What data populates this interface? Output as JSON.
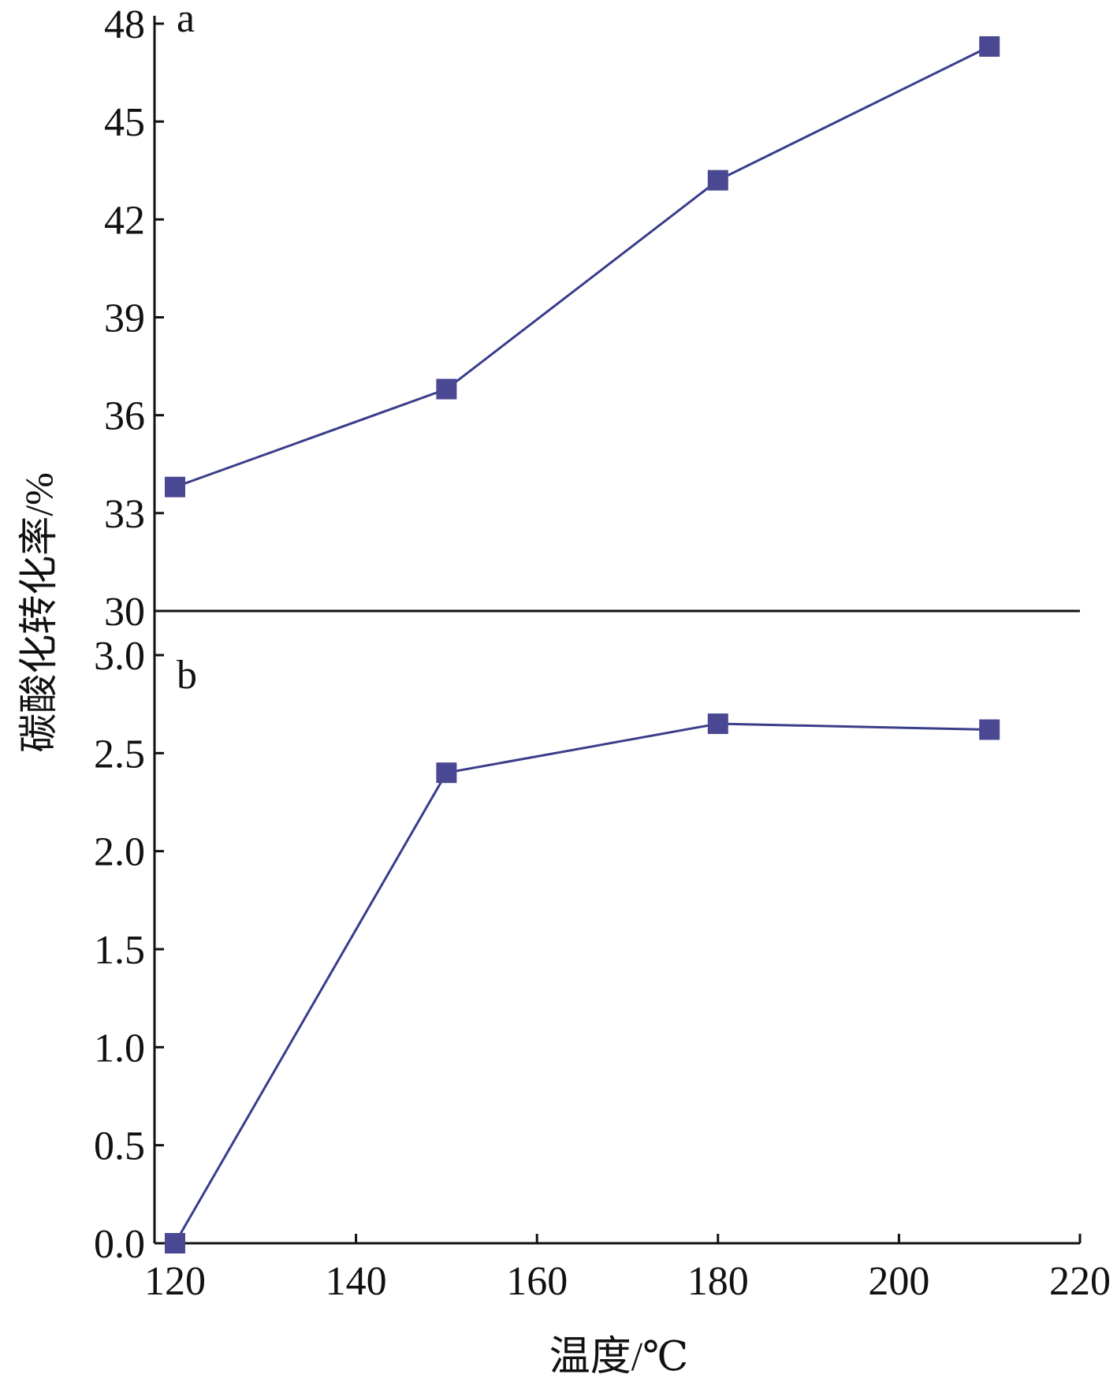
{
  "chart_data": {
    "type": "line",
    "xlabel": "温度/℃",
    "ylabel": "碳酸化转化率/%",
    "x_ticks": [
      120,
      140,
      160,
      180,
      200,
      220
    ],
    "xlim": [
      119,
      220
    ],
    "line_color": "#3a3d8a",
    "marker_color": "#4b4893",
    "marker": "square",
    "panels": [
      {
        "label": "a",
        "ylim": [
          30,
          48
        ],
        "y_ticks": [
          "30",
          "33",
          "36",
          "39",
          "42",
          "45",
          "48"
        ],
        "x": [
          120,
          150,
          180,
          210
        ],
        "values": [
          33.8,
          36.8,
          43.2,
          47.3
        ]
      },
      {
        "label": "b",
        "ylim": [
          0,
          3.0
        ],
        "y_ticks": [
          "0.0",
          "0.5",
          "1.0",
          "1.5",
          "2.0",
          "2.5",
          "3.0"
        ],
        "x": [
          120,
          150,
          180,
          210
        ],
        "values": [
          0.0,
          2.4,
          2.65,
          2.62
        ]
      }
    ]
  }
}
